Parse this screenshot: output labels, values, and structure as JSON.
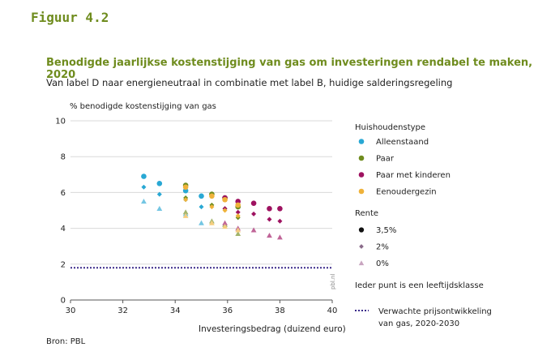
{
  "figure_label": "Figuur 4.2",
  "source": "Bron: PBL",
  "watermark": "pbl.nl",
  "colors": {
    "title": "#6f8c1e",
    "alleenstaand": "#29a8d4",
    "paar": "#6f8c1e",
    "paar_met_kinderen": "#9e1260",
    "eenoudergezin": "#efb23a",
    "reference_line": "#3b2a8a",
    "grid": "#d9d9d9"
  },
  "chart_data": {
    "type": "scatter",
    "title": "Benodigde jaarlijkse kostenstijging van gas om investeringen rendabel te maken, 2020",
    "subtitle": "Van label D naar energieneutraal in combinatie met label B, huidige salderingsregeling",
    "ylabel": "% benodigde kostenstijging van gas",
    "xlabel": "Investeringsbedrag (duizend euro)",
    "xlim": [
      30,
      40
    ],
    "ylim": [
      0,
      10
    ],
    "xticks": [
      "30",
      "32",
      "34",
      "36",
      "38",
      "40"
    ],
    "yticks": [
      "0",
      "2",
      "4",
      "6",
      "8",
      "10"
    ],
    "grid": "horizontal",
    "legend_position": "right",
    "legend": {
      "group1_title": "Huishoudenstype",
      "group1": [
        {
          "key": "alleenstaand",
          "label": "Alleenstaand"
        },
        {
          "key": "paar",
          "label": "Paar"
        },
        {
          "key": "paar_met_kinderen",
          "label": "Paar met kinderen"
        },
        {
          "key": "eenoudergezin",
          "label": "Eenoudergezin"
        }
      ],
      "group2_title": "Rente",
      "group2": [
        {
          "shape": "circle",
          "label": "3,5%"
        },
        {
          "shape": "diamond",
          "label": "2%"
        },
        {
          "shape": "triangle",
          "label": "0%"
        }
      ],
      "note": "Ieder punt is een leeftijdsklasse",
      "line_label": "Verwachte prijsontwikkeling van gas, 2020-2030"
    },
    "reference_line": {
      "y": 1.8
    },
    "series": [
      {
        "key": "alleenstaand",
        "rente": "3,5%",
        "shape": "circle",
        "points": [
          [
            32.8,
            6.9
          ],
          [
            33.4,
            6.5
          ],
          [
            34.4,
            6.1
          ],
          [
            35.0,
            5.8
          ]
        ]
      },
      {
        "key": "alleenstaand",
        "rente": "2%",
        "shape": "diamond",
        "points": [
          [
            32.8,
            6.3
          ],
          [
            33.4,
            5.9
          ],
          [
            34.4,
            5.6
          ],
          [
            35.0,
            5.2
          ]
        ]
      },
      {
        "key": "alleenstaand",
        "rente": "0%",
        "shape": "triangle",
        "points": [
          [
            32.8,
            5.5
          ],
          [
            33.4,
            5.1
          ],
          [
            34.4,
            4.8
          ],
          [
            35.0,
            4.3
          ]
        ]
      },
      {
        "key": "paar",
        "rente": "3,5%",
        "shape": "circle",
        "points": [
          [
            34.4,
            6.4
          ],
          [
            35.4,
            5.9
          ],
          [
            35.9,
            5.7
          ],
          [
            36.4,
            5.2
          ]
        ]
      },
      {
        "key": "paar",
        "rente": "2%",
        "shape": "diamond",
        "points": [
          [
            34.4,
            5.7
          ],
          [
            35.4,
            5.3
          ],
          [
            35.9,
            5.1
          ],
          [
            36.4,
            4.6
          ]
        ]
      },
      {
        "key": "paar",
        "rente": "0%",
        "shape": "triangle",
        "points": [
          [
            34.4,
            4.9
          ],
          [
            35.4,
            4.4
          ],
          [
            35.9,
            4.2
          ],
          [
            36.4,
            3.7
          ]
        ]
      },
      {
        "key": "paar_met_kinderen",
        "rente": "3,5%",
        "shape": "circle",
        "points": [
          [
            35.9,
            5.7
          ],
          [
            36.4,
            5.5
          ],
          [
            37.0,
            5.4
          ],
          [
            37.6,
            5.1
          ],
          [
            38.0,
            5.1
          ]
        ]
      },
      {
        "key": "paar_met_kinderen",
        "rente": "2%",
        "shape": "diamond",
        "points": [
          [
            35.9,
            5.1
          ],
          [
            36.4,
            4.9
          ],
          [
            37.0,
            4.8
          ],
          [
            37.6,
            4.5
          ],
          [
            38.0,
            4.4
          ]
        ]
      },
      {
        "key": "paar_met_kinderen",
        "rente": "0%",
        "shape": "triangle",
        "points": [
          [
            35.9,
            4.3
          ],
          [
            36.4,
            4.0
          ],
          [
            37.0,
            3.9
          ],
          [
            37.6,
            3.6
          ],
          [
            38.0,
            3.5
          ]
        ]
      },
      {
        "key": "eenoudergezin",
        "rente": "3,5%",
        "shape": "circle",
        "points": [
          [
            34.4,
            6.3
          ],
          [
            35.4,
            5.8
          ],
          [
            35.9,
            5.6
          ],
          [
            36.4,
            5.3
          ]
        ]
      },
      {
        "key": "eenoudergezin",
        "rente": "2%",
        "shape": "diamond",
        "points": [
          [
            34.4,
            5.6
          ],
          [
            35.4,
            5.2
          ],
          [
            35.9,
            5.0
          ],
          [
            36.4,
            4.7
          ]
        ]
      },
      {
        "key": "eenoudergezin",
        "rente": "0%",
        "shape": "triangle",
        "points": [
          [
            34.4,
            4.7
          ],
          [
            35.4,
            4.3
          ],
          [
            35.9,
            4.1
          ],
          [
            36.4,
            3.9
          ]
        ]
      }
    ]
  }
}
